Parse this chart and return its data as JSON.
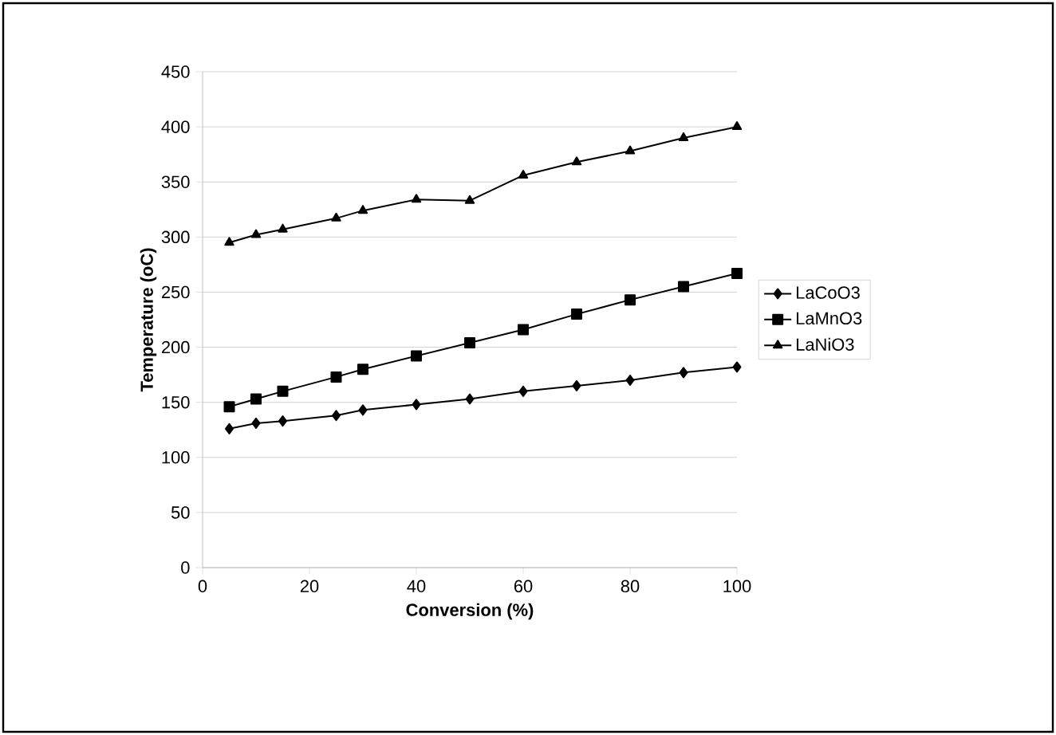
{
  "chart_data": {
    "type": "line",
    "xlabel": "Conversion (%)",
    "ylabel": "Temperature (oC)",
    "x": [
      5,
      10,
      15,
      25,
      30,
      40,
      50,
      60,
      70,
      80,
      90,
      100
    ],
    "series": [
      {
        "name": "LaCoO3",
        "color": "#000000",
        "marker": "diamond",
        "values": [
          126,
          131,
          133,
          138,
          143,
          148,
          153,
          160,
          165,
          170,
          177,
          182
        ]
      },
      {
        "name": "LaMnO3",
        "color": "#000000",
        "marker": "square",
        "values": [
          146,
          153,
          160,
          173,
          180,
          192,
          204,
          216,
          230,
          243,
          255,
          267
        ]
      },
      {
        "name": "LaNiO3",
        "color": "#000000",
        "marker": "triangle",
        "values": [
          295,
          302,
          307,
          317,
          324,
          334,
          333,
          356,
          368,
          378,
          390,
          400
        ]
      }
    ],
    "xlim": [
      0,
      100
    ],
    "ylim": [
      0,
      450
    ],
    "xticks": [
      0,
      20,
      40,
      60,
      80,
      100
    ],
    "yticks": [
      0,
      50,
      100,
      150,
      200,
      250,
      300,
      350,
      400,
      450
    ],
    "grid": "y",
    "legend": "right"
  }
}
